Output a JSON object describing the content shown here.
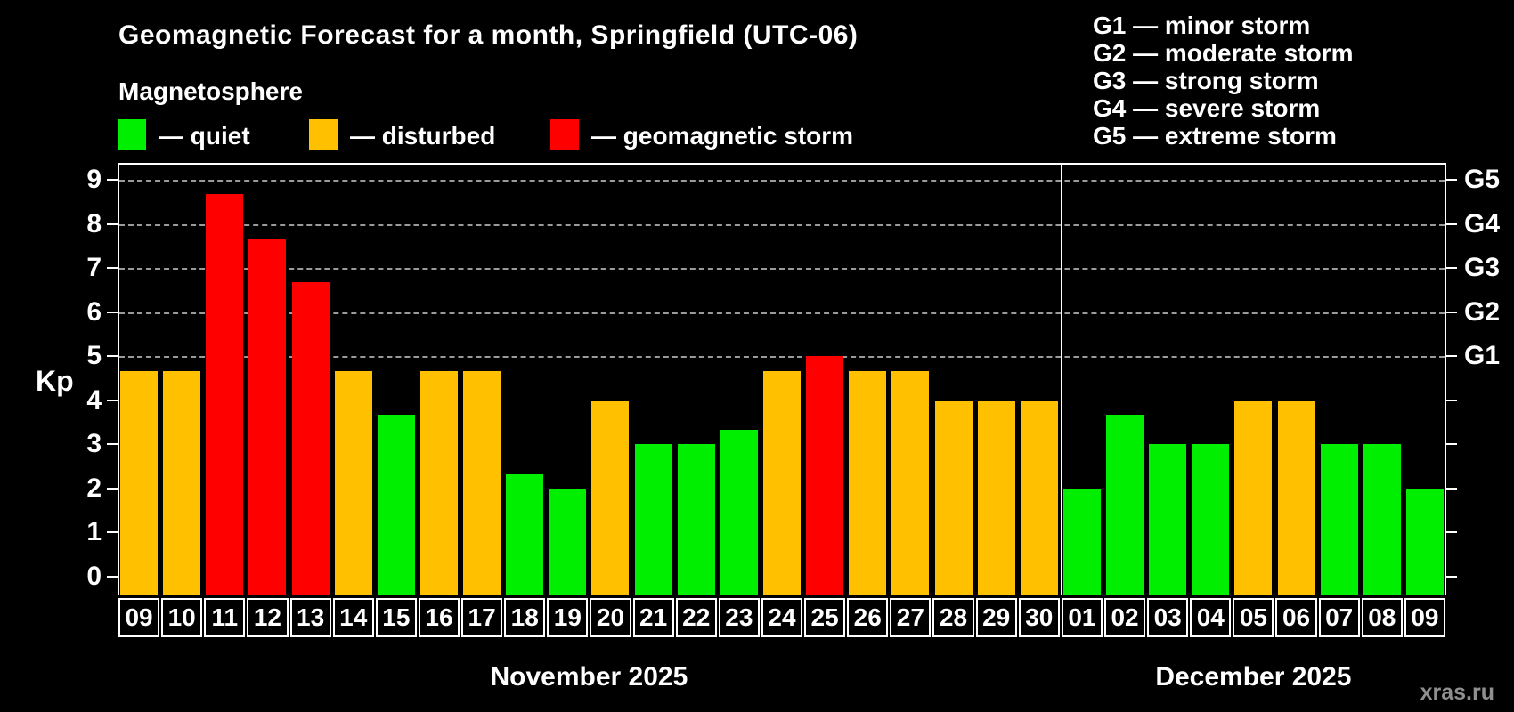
{
  "title": "Geomagnetic Forecast for a month, Springfield (UTC-06)",
  "subtitle": "Magnetosphere",
  "legend": {
    "quiet": {
      "label": "— quiet",
      "color": "#00ee00"
    },
    "disturbed": {
      "label": "— disturbed",
      "color": "#ffc000"
    },
    "storm": {
      "label": "— geomagnetic storm",
      "color": "#ff0000"
    }
  },
  "g_levels": [
    {
      "code": "G1",
      "kp": 5,
      "label": "G1 — minor storm"
    },
    {
      "code": "G2",
      "kp": 6,
      "label": "G2 — moderate storm"
    },
    {
      "code": "G3",
      "kp": 7,
      "label": "G3 — strong storm"
    },
    {
      "code": "G4",
      "kp": 8,
      "label": "G4 — severe storm"
    },
    {
      "code": "G5",
      "kp": 9,
      "label": "G5 — extreme storm"
    }
  ],
  "watermark": "xras.ru",
  "chart_data": {
    "type": "bar",
    "title": "Geomagnetic Forecast for a month, Springfield (UTC-06)",
    "ylabel": "Kp",
    "ylim": [
      0,
      9
    ],
    "yticks": [
      0,
      1,
      2,
      3,
      4,
      5,
      6,
      7,
      8,
      9
    ],
    "gridlines_at": [
      5,
      6,
      7,
      8,
      9
    ],
    "grid": "dashed, G-levels only",
    "months": [
      {
        "label": "November 2025",
        "days": 22
      },
      {
        "label": "December 2025",
        "days": 9
      }
    ],
    "categories": [
      "09",
      "10",
      "11",
      "12",
      "13",
      "14",
      "15",
      "16",
      "17",
      "18",
      "19",
      "20",
      "21",
      "22",
      "23",
      "24",
      "25",
      "26",
      "27",
      "28",
      "29",
      "30",
      "01",
      "02",
      "03",
      "04",
      "05",
      "06",
      "07",
      "08",
      "09"
    ],
    "values": [
      4.67,
      4.67,
      8.67,
      7.67,
      6.67,
      4.67,
      3.67,
      4.67,
      4.67,
      2.33,
      2.0,
      4.0,
      3.0,
      3.0,
      3.33,
      4.67,
      5.0,
      4.67,
      4.67,
      4.0,
      4.0,
      4.0,
      2.0,
      3.67,
      3.0,
      3.0,
      4.0,
      4.0,
      3.0,
      3.0,
      2.0
    ],
    "statuses": [
      "disturbed",
      "disturbed",
      "storm",
      "storm",
      "storm",
      "disturbed",
      "quiet",
      "disturbed",
      "disturbed",
      "quiet",
      "quiet",
      "disturbed",
      "quiet",
      "quiet",
      "quiet",
      "disturbed",
      "storm",
      "disturbed",
      "disturbed",
      "disturbed",
      "disturbed",
      "disturbed",
      "quiet",
      "quiet",
      "quiet",
      "quiet",
      "disturbed",
      "disturbed",
      "quiet",
      "quiet",
      "quiet"
    ]
  }
}
